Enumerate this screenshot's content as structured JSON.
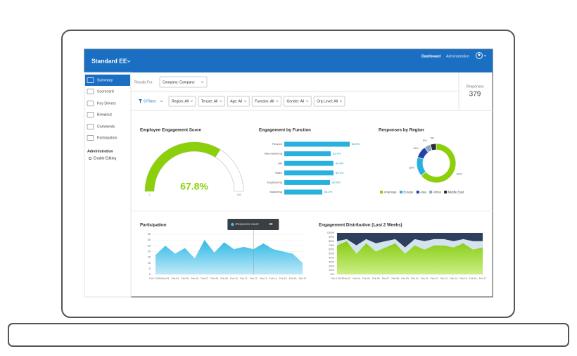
{
  "header": {
    "title": "Standard EE",
    "nav": [
      "Dashboard",
      "Administration"
    ]
  },
  "sidebar": {
    "items": [
      "Summary",
      "Scorecard",
      "Key Drivers",
      "Breakout",
      "Comments",
      "Participation"
    ],
    "section": "Administration",
    "action": "Enable Editing"
  },
  "results_for": {
    "label": "Results For:",
    "value": "Company: Company"
  },
  "filters": {
    "button": "6 Filters",
    "items": [
      "Region: All",
      "Tenure: All",
      "Age: All",
      "Function: All",
      "Gender: All",
      "Org Level: All"
    ]
  },
  "responses": {
    "label": "Responses",
    "value": 379
  },
  "chart_data": [
    {
      "type": "gauge",
      "title": "Employee Engagement Score",
      "values": [
        67.8
      ],
      "value_labels": [
        "67.8%"
      ],
      "color": "#8ccf0b",
      "ylim": [
        0,
        100
      ],
      "yticks": [
        0,
        100
      ]
    },
    {
      "type": "hbar",
      "title": "Engagement by Function",
      "categories": [
        "Finance",
        "Manufacturing",
        "HR",
        "Sales",
        "Engineering",
        "Marketing"
      ],
      "values": [
        86.5,
        61.4,
        64.9,
        65.1,
        60.5,
        50.2
      ],
      "value_labels": [
        "86.5%",
        "61.4%",
        "64.9%",
        "65.1%",
        "60.5%",
        "50.2%"
      ],
      "color": "#29b1de",
      "xlim": [
        0,
        100
      ]
    },
    {
      "type": "donut",
      "title": "Responses by Region",
      "categories": [
        "Americas",
        "Europe",
        "Asia",
        "Africa",
        "Middle East"
      ],
      "values": [
        64,
        16,
        10,
        5,
        5
      ],
      "value_labels": [
        "64%",
        "16%",
        "10%",
        "5%",
        "5%"
      ],
      "colors": [
        "#8ccf0b",
        "#29b1de",
        "#2244a8",
        "#8fa5bf",
        "#2b2f38"
      ],
      "legend": "bottom"
    },
    {
      "type": "area",
      "title": "Participation",
      "categories": [
        "Feb 2 2016",
        "Feb 03",
        "Feb 04",
        "Feb 05",
        "Feb 06",
        "Feb 07",
        "Feb 08",
        "Feb 09",
        "Feb 10",
        "Feb 11",
        "Feb 12",
        "Feb 13",
        "Feb 14",
        "Feb 15",
        "Feb 16",
        "Feb 17"
      ],
      "values": [
        17,
        25,
        18,
        23,
        14,
        30,
        19,
        28,
        22,
        24,
        22,
        27,
        22,
        20,
        18,
        10
      ],
      "color": "#3fc0ea",
      "ylim": [
        0,
        35
      ],
      "yticks": [
        0,
        5,
        10,
        15,
        20,
        25,
        30,
        35
      ],
      "grid": true,
      "tooltip": {
        "label": "Response count",
        "value": 22
      }
    },
    {
      "type": "stacked_area",
      "title": "Engagement Distribution (Last 2 Weeks)",
      "categories": [
        "Feb 2 2016",
        "Feb 03",
        "Feb 04",
        "Feb 05",
        "Feb 06",
        "Feb 07",
        "Feb 08",
        "Feb 09",
        "Feb 10",
        "Feb 11",
        "Feb 12",
        "Feb 13",
        "Feb 14",
        "Feb 15",
        "Feb 16",
        "Feb 17"
      ],
      "series": [
        {
          "color": "#8fd11f",
          "values": [
            70,
            80,
            50,
            75,
            55,
            65,
            75,
            50,
            70,
            60,
            70,
            70,
            65,
            75,
            60,
            65
          ]
        },
        {
          "color": "#d5e3ee",
          "values": [
            10,
            5,
            20,
            10,
            20,
            15,
            10,
            15,
            15,
            20,
            15,
            15,
            15,
            10,
            20,
            15
          ]
        },
        {
          "color": "#2d3f5c",
          "values": [
            20,
            15,
            30,
            15,
            25,
            20,
            15,
            35,
            15,
            20,
            15,
            15,
            20,
            15,
            20,
            20
          ]
        }
      ],
      "ylim": [
        0,
        100
      ],
      "yticks": [
        {
          "value": 0,
          "label": "0%"
        },
        {
          "value": 10,
          "label": "10%"
        },
        {
          "value": 20,
          "label": "20%"
        },
        {
          "value": 30,
          "label": "30%"
        },
        {
          "value": 40,
          "label": "40%"
        },
        {
          "value": 50,
          "label": "50%"
        },
        {
          "value": 60,
          "label": "60%"
        },
        {
          "value": 70,
          "label": "70%"
        },
        {
          "value": 80,
          "label": "80%"
        },
        {
          "value": 90,
          "label": "90%"
        },
        {
          "value": 100,
          "label": "100%"
        }
      ],
      "grid": true
    }
  ]
}
